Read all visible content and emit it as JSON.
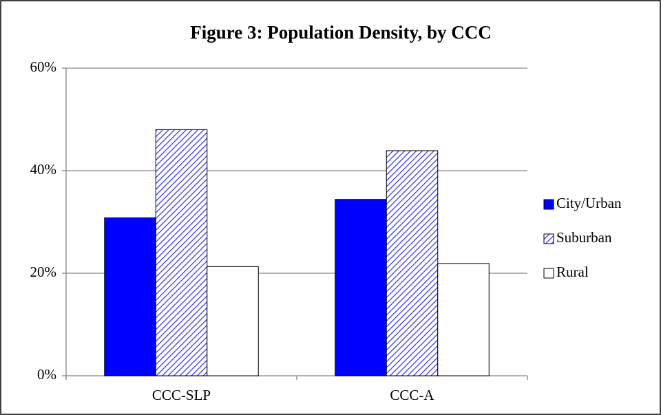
{
  "chart_data": {
    "type": "bar",
    "title": "Figure 3:  Population Density, by CCC",
    "categories": [
      "CCC-SLP",
      "CCC-A"
    ],
    "series": [
      {
        "name": "City/Urban",
        "color": "#0000ff",
        "values": [
          30.8,
          34.4
        ]
      },
      {
        "name": "Suburban",
        "color": "#3333ff",
        "hatch": true,
        "values": [
          48,
          43.9
        ]
      },
      {
        "name": "Rural",
        "color": "#ffffff",
        "values": [
          21.3,
          21.9
        ]
      }
    ],
    "ylim": [
      0,
      60
    ],
    "yticks": [
      {
        "value": 0,
        "label": "0%"
      },
      {
        "value": 20,
        "label": "20%"
      },
      {
        "value": 40,
        "label": "40%"
      },
      {
        "value": 60,
        "label": "60%"
      }
    ],
    "grid": true,
    "legend": "right"
  }
}
